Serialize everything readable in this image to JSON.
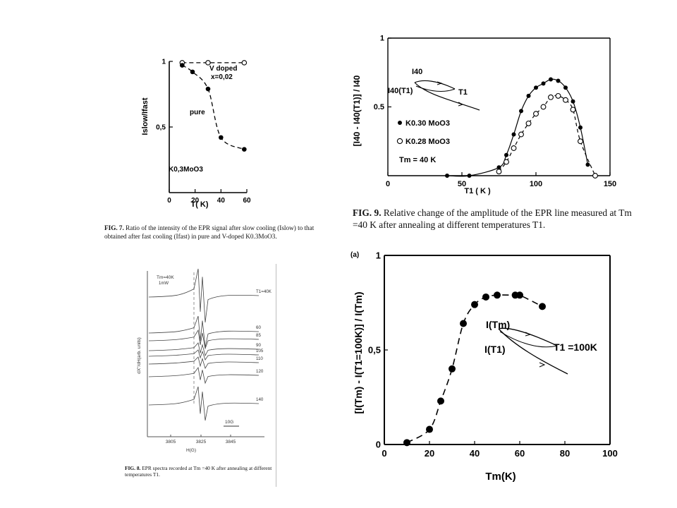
{
  "chart_data": [
    {
      "id": "fig7",
      "type": "scatter",
      "xlabel": "T( K)",
      "ylabel": "Islow/Ifast",
      "xlim": [
        0,
        60
      ],
      "ylim": [
        0,
        1
      ],
      "x_ticks": [
        "0",
        "20",
        "40",
        "60"
      ],
      "y_ticks": [
        "0,5",
        "1"
      ],
      "series": [
        {
          "name": "pure",
          "marker": "filled",
          "x": [
            10,
            18,
            30,
            40,
            58
          ],
          "y": [
            0.97,
            0.92,
            0.79,
            0.42,
            0.33
          ]
        },
        {
          "name": "V doped x=0,02",
          "marker": "open",
          "x": [
            10,
            30,
            58
          ],
          "y": [
            0.99,
            0.99,
            0.99
          ]
        }
      ],
      "annotations": [
        "V doped",
        "x=0,02",
        "pure",
        "K0,3MoO3"
      ]
    },
    {
      "id": "fig9",
      "type": "scatter",
      "xlabel": "T1 ( K )",
      "ylabel": "[I40 - I40(T1)] / I40",
      "xlim": [
        0,
        150
      ],
      "ylim": [
        0,
        1
      ],
      "x_ticks": [
        "0",
        "50",
        "100",
        "150"
      ],
      "y_ticks": [
        "0.5",
        "1"
      ],
      "series": [
        {
          "name": "K0.30 MoO3",
          "marker": "filled",
          "x": [
            40,
            55,
            75,
            80,
            85,
            90,
            95,
            100,
            105,
            110,
            115,
            120,
            125,
            130,
            135
          ],
          "y": [
            0.0,
            0.0,
            0.06,
            0.15,
            0.3,
            0.47,
            0.58,
            0.64,
            0.67,
            0.7,
            0.69,
            0.64,
            0.54,
            0.35,
            0.08
          ]
        },
        {
          "name": "K0.28 MoO3",
          "marker": "open",
          "x": [
            75,
            80,
            85,
            90,
            95,
            100,
            105,
            110,
            115,
            120,
            125,
            130,
            140
          ],
          "y": [
            0.03,
            0.1,
            0.2,
            0.3,
            0.38,
            0.45,
            0.5,
            0.57,
            0.58,
            0.55,
            0.48,
            0.25,
            0.0
          ]
        }
      ],
      "annotations": [
        "I40",
        "I40(T1)",
        "T1",
        "Tm = 40 K"
      ]
    },
    {
      "id": "fig_a",
      "type": "scatter",
      "xlabel": "Tm(K)",
      "ylabel": "[I(Tm) - I(T1=100K)] / I(Tm)",
      "xlim": [
        0,
        100
      ],
      "ylim": [
        0,
        1
      ],
      "x_ticks": [
        "0",
        "20",
        "40",
        "60",
        "80",
        "100"
      ],
      "y_ticks": [
        "0",
        "0,5",
        "1"
      ],
      "series": [
        {
          "marker": "filled",
          "x": [
            10,
            20,
            25,
            30,
            35,
            40,
            45,
            50,
            58,
            60,
            70
          ],
          "y": [
            0.01,
            0.08,
            0.23,
            0.4,
            0.64,
            0.74,
            0.78,
            0.79,
            0.79,
            0.79,
            0.73
          ]
        }
      ],
      "annotations": [
        "I(Tm)",
        "I(T1)",
        "T1 =100K"
      ]
    },
    {
      "id": "fig8",
      "type": "line",
      "xlabel": "H(G)",
      "ylabel": "dX''/dH(arb. units)",
      "x_ticks": [
        "3805",
        "3825",
        "3845"
      ],
      "series_labels": [
        "T1=40K",
        "60",
        "85",
        "90",
        "105",
        "110",
        "120",
        "140"
      ],
      "annotations": [
        "Tm=40K",
        "1mW",
        "10G"
      ]
    }
  ],
  "captions": {
    "fig7": {
      "label": "FIG. 7.",
      "text": "Ratio of the intensity of the EPR signal after slow cooling (Islow) to that obtained after fast cooling (Ifast) in pure and V-doped K0.3MoO3."
    },
    "fig9": {
      "label": "FIG. 9.",
      "text": "Relative change of the amplitude of the EPR line measured at Tm =40 K after annealing at different temperatures T1."
    },
    "fig8": {
      "label": "FIG. 8.",
      "text": "EPR spectra recorded at Tm =40 K after annealing at different temperatures T1."
    }
  },
  "panel_label": "(a)"
}
